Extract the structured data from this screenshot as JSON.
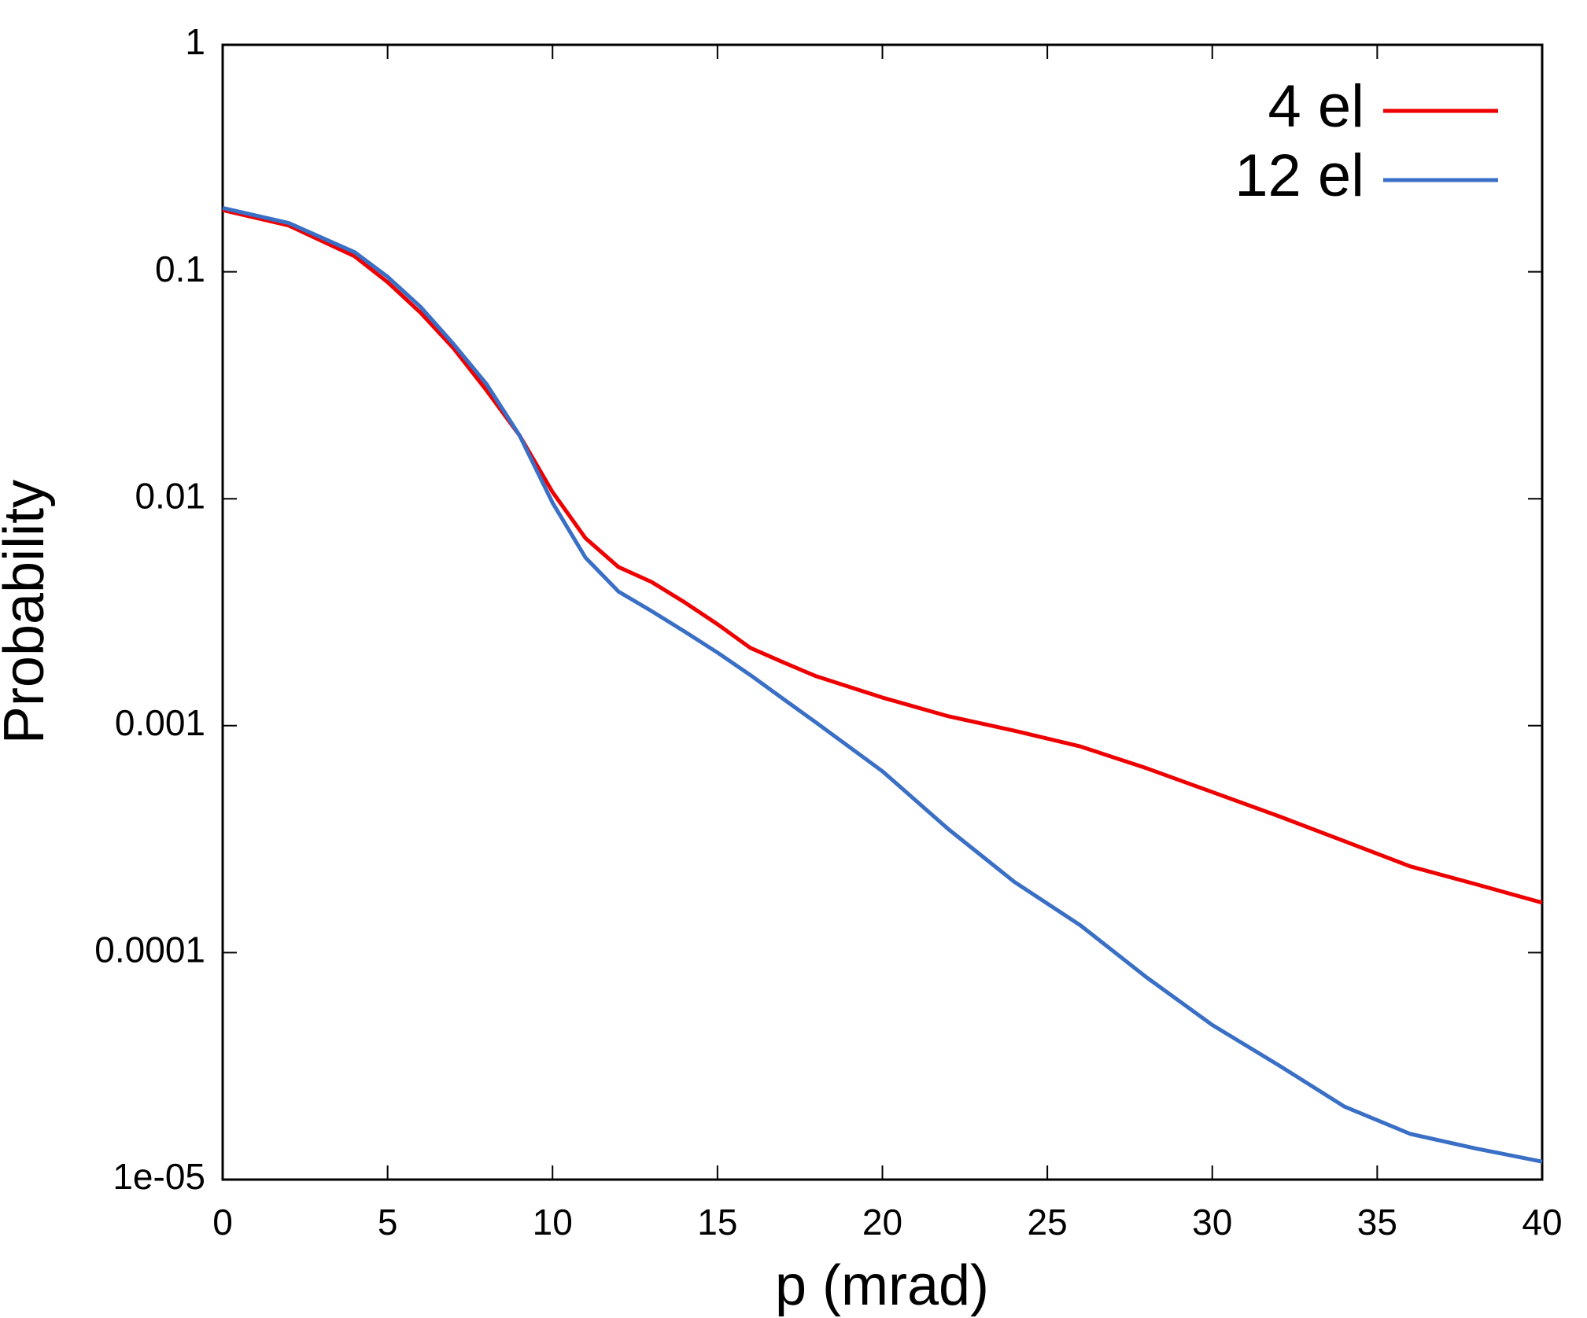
{
  "chart_data": {
    "type": "line",
    "xlabel": "p (mrad)",
    "ylabel": "Probability",
    "x": [
      0,
      2,
      4,
      5,
      6,
      7,
      8,
      9,
      10,
      11,
      12,
      13,
      14,
      15,
      16,
      17,
      18,
      20,
      22,
      24,
      26,
      28,
      30,
      32,
      34,
      36,
      38,
      40
    ],
    "series": [
      {
        "name": "4 el",
        "color": "#ee0000",
        "values": [
          0.187,
          0.16,
          0.117,
          0.09,
          0.066,
          0.046,
          0.03,
          0.019,
          0.0107,
          0.0067,
          0.005,
          0.0043,
          0.0035,
          0.0028,
          0.0022,
          0.0019,
          0.00165,
          0.00133,
          0.0011,
          0.00095,
          0.00081,
          0.00065,
          0.00051,
          0.0004,
          0.00031,
          0.00024,
          0.0002,
          0.000166
        ]
      },
      {
        "name": "12 el",
        "color": "#3a6fc6",
        "values": [
          0.191,
          0.164,
          0.122,
          0.095,
          0.07,
          0.048,
          0.032,
          0.019,
          0.0096,
          0.0055,
          0.0039,
          0.0032,
          0.0026,
          0.0021,
          0.00167,
          0.00131,
          0.00103,
          0.00063,
          0.00035,
          0.000205,
          0.000132,
          7.8e-05,
          4.8e-05,
          3.2e-05,
          2.1e-05,
          1.59e-05,
          1.37e-05,
          1.2e-05
        ]
      }
    ],
    "xlim": [
      0,
      40
    ],
    "xticks": [
      0,
      5,
      10,
      15,
      20,
      25,
      30,
      35,
      40
    ],
    "ylim": [
      1e-05,
      1
    ],
    "ylog": true,
    "yticks": [
      {
        "value": 1e-05,
        "label": "1e-05"
      },
      0.0001,
      0.001,
      0.01,
      0.1,
      1
    ],
    "legend": "top-right"
  }
}
